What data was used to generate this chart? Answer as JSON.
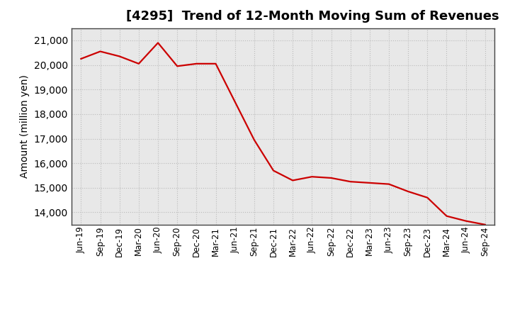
{
  "title": "[4295]  Trend of 12-Month Moving Sum of Revenues",
  "ylabel": "Amount (million yen)",
  "line_color": "#cc0000",
  "background_color": "#ffffff",
  "plot_bg_color": "#e8e8e8",
  "grid_color": "#bbbbbb",
  "ylim": [
    13500,
    21500
  ],
  "yticks": [
    14000,
    15000,
    16000,
    17000,
    18000,
    19000,
    20000,
    21000
  ],
  "x_labels": [
    "Jun-19",
    "Sep-19",
    "Dec-19",
    "Mar-20",
    "Jun-20",
    "Sep-20",
    "Dec-20",
    "Mar-21",
    "Jun-21",
    "Sep-21",
    "Dec-21",
    "Mar-22",
    "Jun-22",
    "Sep-22",
    "Dec-22",
    "Mar-23",
    "Jun-23",
    "Sep-23",
    "Dec-23",
    "Mar-24",
    "Jun-24",
    "Sep-24"
  ],
  "values": [
    20250,
    20550,
    20350,
    20050,
    20900,
    19950,
    20050,
    20050,
    18500,
    16950,
    15700,
    15300,
    15450,
    15400,
    15250,
    15200,
    15150,
    14850,
    14600,
    13850,
    13650,
    13500
  ],
  "title_fontsize": 13,
  "ylabel_fontsize": 10,
  "ytick_fontsize": 10,
  "xtick_fontsize": 8.5
}
